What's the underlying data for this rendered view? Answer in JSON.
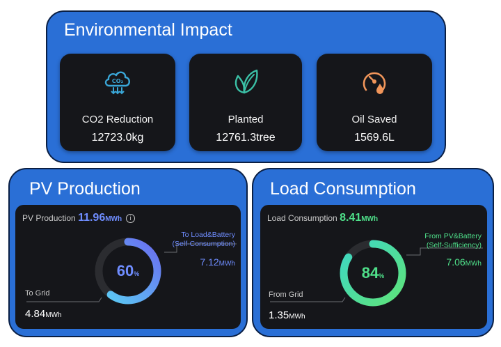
{
  "environmental": {
    "title": "Environmental Impact",
    "cards": [
      {
        "icon": "co2-cloud-icon",
        "label": "CO2 Reduction",
        "value": "12723.0kg",
        "color": "#3aa7d8"
      },
      {
        "icon": "leaf-icon",
        "label": "Planted",
        "value": "12761.3tree",
        "color": "#3bc0a6"
      },
      {
        "icon": "oil-gauge-icon",
        "label": "Oil Saved",
        "value": "1569.6L",
        "color": "#f0955a"
      }
    ],
    "co2_icon_text": "CO₂"
  },
  "pv": {
    "title": "PV Production",
    "header_label": "PV Production",
    "header_value": "11.96",
    "header_unit": "MWh",
    "percent": "60",
    "percent_unit": "%",
    "fill_fraction": 0.6,
    "right_label_1": "To Load&Battery",
    "right_label_2": "(Self-Consumption)",
    "right_value": "7.12",
    "right_unit": "MWh",
    "left_label": "To Grid",
    "left_value": "4.84",
    "left_unit": "MWh",
    "accent": "#6f8dff",
    "gradient_start": "#5ad1f4",
    "gradient_end": "#6a6cf0"
  },
  "load": {
    "title": "Load Consumption",
    "header_label": "Load Consumption",
    "header_value": "8.41",
    "header_unit": "MWh",
    "percent": "84",
    "percent_unit": "%",
    "fill_fraction": 0.84,
    "right_label_1": "From PV&Battery",
    "right_label_2": "(Self-Sufficiency)",
    "right_value": "7.06",
    "right_unit": "MWh",
    "left_label": "From Grid",
    "left_value": "1.35",
    "left_unit": "MWh",
    "accent": "#4fe08a",
    "gradient_start": "#3ed6c4",
    "gradient_end": "#5ee37a"
  },
  "info_icon_glyph": "i"
}
